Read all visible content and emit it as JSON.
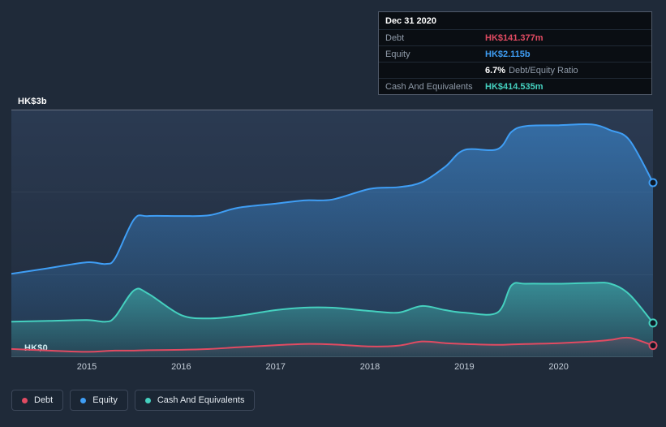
{
  "axis": {
    "y_top": "HK$3b",
    "y_bottom": "HK$0"
  },
  "tooltip": {
    "date": "Dec 31 2020",
    "debt_label": "Debt",
    "debt_value": "HK$141.377m",
    "equity_label": "Equity",
    "equity_value": "HK$2.115b",
    "ratio_value": "6.7%",
    "ratio_label": "Debt/Equity Ratio",
    "cash_label": "Cash And Equivalents",
    "cash_value": "HK$414.535m"
  },
  "chart_data": {
    "type": "area",
    "x_unit": "year",
    "y_unit": "HK$ billions",
    "x_range": [
      2014.2,
      2021.0
    ],
    "ylim": [
      0,
      3
    ],
    "grid_values": [
      1,
      2
    ],
    "x_ticks": [
      2015,
      2016,
      2017,
      2018,
      2019,
      2020
    ],
    "legend_position": "bottom-left",
    "last_point_annotation": "Dec 31 2020",
    "x": [
      2014.2,
      2014.6,
      2015.0,
      2015.2,
      2015.3,
      2015.5,
      2015.65,
      2016.0,
      2016.3,
      2016.6,
      2017.0,
      2017.3,
      2017.6,
      2018.0,
      2018.3,
      2018.55,
      2018.8,
      2019.0,
      2019.35,
      2019.5,
      2019.65,
      2020.0,
      2020.35,
      2020.55,
      2020.75,
      2021.0
    ],
    "series": [
      {
        "name": "Debt",
        "key": "debt",
        "color": "#e14b62",
        "fill_opacity": [
          0.18,
          0.02
        ],
        "values": [
          0.1,
          0.08,
          0.065,
          0.075,
          0.08,
          0.08,
          0.085,
          0.09,
          0.1,
          0.12,
          0.145,
          0.16,
          0.155,
          0.13,
          0.14,
          0.19,
          0.17,
          0.16,
          0.15,
          0.155,
          0.16,
          0.17,
          0.19,
          0.21,
          0.235,
          0.1414
        ]
      },
      {
        "name": "Equity",
        "key": "equity",
        "color": "#3f9ef5",
        "fill_opacity": [
          0.5,
          0.07
        ],
        "values": [
          1.01,
          1.08,
          1.15,
          1.13,
          1.2,
          1.67,
          1.71,
          1.71,
          1.72,
          1.81,
          1.86,
          1.9,
          1.91,
          2.04,
          2.06,
          2.12,
          2.31,
          2.51,
          2.52,
          2.73,
          2.8,
          2.81,
          2.82,
          2.75,
          2.63,
          2.115
        ]
      },
      {
        "name": "Cash And Equivalents",
        "key": "cash",
        "color": "#45d0bf",
        "fill_opacity": [
          0.5,
          0.1
        ],
        "values": [
          0.43,
          0.44,
          0.45,
          0.43,
          0.49,
          0.81,
          0.77,
          0.51,
          0.47,
          0.5,
          0.57,
          0.6,
          0.6,
          0.56,
          0.54,
          0.62,
          0.57,
          0.54,
          0.54,
          0.87,
          0.89,
          0.89,
          0.9,
          0.89,
          0.76,
          0.4145
        ]
      }
    ]
  }
}
